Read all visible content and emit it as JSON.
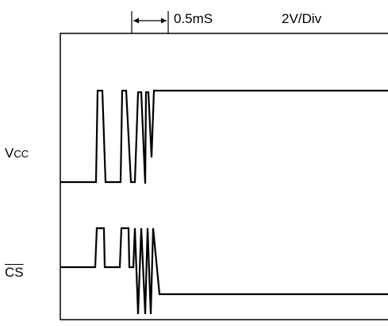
{
  "header": {
    "timebase": "0.5mS",
    "volts_per_div": "2V/Div"
  },
  "traces": {
    "vcc": {
      "label_main": "V",
      "label_sub": "CC"
    },
    "cs": {
      "label": "CS",
      "overline": true
    }
  },
  "colors": {
    "trace": "#000000",
    "frame": "#000000",
    "background": "#ffffff"
  }
}
